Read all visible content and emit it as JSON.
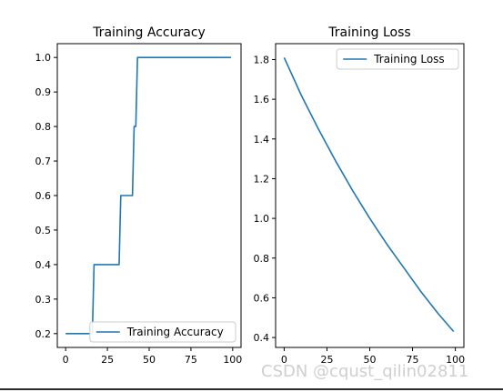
{
  "chart_data": [
    {
      "type": "line",
      "title": "Training Accuracy",
      "xlabel": "",
      "ylabel": "",
      "xlim": [
        -5,
        105
      ],
      "ylim": [
        0.16,
        1.04
      ],
      "xticks": [
        0,
        25,
        50,
        75,
        100
      ],
      "yticks": [
        0.2,
        0.3,
        0.4,
        0.5,
        0.6,
        0.7,
        0.8,
        0.9,
        1.0
      ],
      "ytick_labels": [
        "0.2",
        "0.3",
        "0.4",
        "0.5",
        "0.6",
        "0.7",
        "0.8",
        "0.9",
        "1.0"
      ],
      "grid": false,
      "legend": "lower right",
      "color": "#1f77b4",
      "series": [
        {
          "name": "Training Accuracy",
          "x": [
            0,
            16,
            17,
            32,
            33,
            40,
            41,
            42,
            43,
            99
          ],
          "values": [
            0.2,
            0.2,
            0.4,
            0.4,
            0.6,
            0.6,
            0.8,
            0.8,
            1.0,
            1.0
          ]
        }
      ]
    },
    {
      "type": "line",
      "title": "Training Loss",
      "xlabel": "",
      "ylabel": "",
      "xlim": [
        -5,
        105
      ],
      "ylim": [
        0.35,
        1.88
      ],
      "xticks": [
        0,
        25,
        50,
        75,
        100
      ],
      "yticks": [
        0.4,
        0.6,
        0.8,
        1.0,
        1.2,
        1.4,
        1.6,
        1.8
      ],
      "ytick_labels": [
        "0.4",
        "0.6",
        "0.8",
        "1.0",
        "1.2",
        "1.4",
        "1.6",
        "1.8"
      ],
      "grid": false,
      "legend": "upper right",
      "color": "#1f77b4",
      "series": [
        {
          "name": "Training Loss",
          "x": [
            0,
            10,
            20,
            30,
            40,
            50,
            60,
            70,
            80,
            90,
            99
          ],
          "values": [
            1.81,
            1.62,
            1.45,
            1.29,
            1.14,
            1.0,
            0.87,
            0.75,
            0.63,
            0.52,
            0.43
          ]
        }
      ]
    }
  ],
  "watermark": "CSDN @cqust_qilin02811"
}
